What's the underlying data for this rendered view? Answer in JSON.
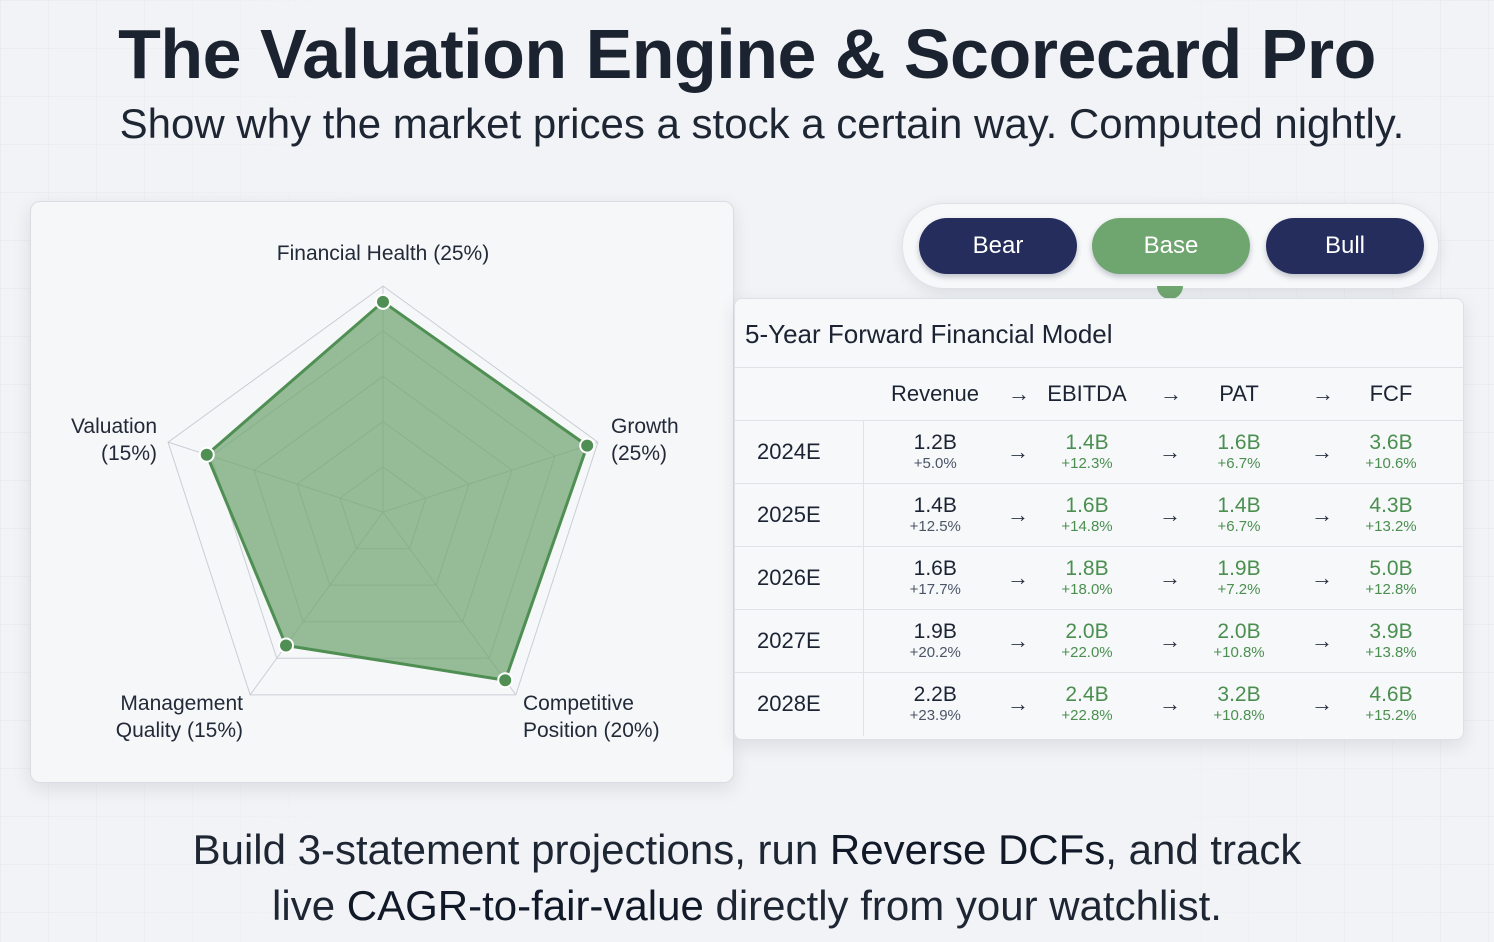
{
  "header": {
    "title": "The Valuation Engine & Scorecard Pro",
    "subtitle": "Show why the market prices a stock a certain way. Computed nightly."
  },
  "scorecard": {
    "axes": [
      {
        "label_lines": [
          "Financial Health (25%)"
        ],
        "score": 0.93
      },
      {
        "label_lines": [
          "Growth",
          "(25%)"
        ],
        "score": 0.95
      },
      {
        "label_lines": [
          "Competitive",
          "Position (20%)"
        ],
        "score": 0.92
      },
      {
        "label_lines": [
          "Management",
          "Quality (15%)"
        ],
        "score": 0.73
      },
      {
        "label_lines": [
          "Valuation",
          "(15%)"
        ],
        "score": 0.82
      }
    ],
    "fill_color": "#6fa56f",
    "point_color": "#4f8f53",
    "grid_color": "#c9ced6"
  },
  "scenarios": {
    "bear": "Bear",
    "base": "Base",
    "bull": "Bull",
    "selected": "Base",
    "selected_color": "#6fa56f",
    "unselected_color": "#252d5c"
  },
  "model": {
    "title": "5-Year Forward Financial Model",
    "arrow": "→",
    "columns": [
      "Revenue",
      "EBITDA",
      "PAT",
      "FCF"
    ],
    "rows": [
      {
        "year": "2024E",
        "revenue": {
          "v": "1.2B",
          "g": "+5.0%"
        },
        "ebitda": {
          "v": "1.4B",
          "g": "+12.3%"
        },
        "pat": {
          "v": "1.6B",
          "g": "+6.7%"
        },
        "fcf": {
          "v": "3.6B",
          "g": "+10.6%"
        }
      },
      {
        "year": "2025E",
        "revenue": {
          "v": "1.4B",
          "g": "+12.5%"
        },
        "ebitda": {
          "v": "1.6B",
          "g": "+14.8%"
        },
        "pat": {
          "v": "1.4B",
          "g": "+6.7%"
        },
        "fcf": {
          "v": "4.3B",
          "g": "+13.2%"
        }
      },
      {
        "year": "2026E",
        "revenue": {
          "v": "1.6B",
          "g": "+17.7%"
        },
        "ebitda": {
          "v": "1.8B",
          "g": "+18.0%"
        },
        "pat": {
          "v": "1.9B",
          "g": "+7.2%"
        },
        "fcf": {
          "v": "5.0B",
          "g": "+12.8%"
        }
      },
      {
        "year": "2027E",
        "revenue": {
          "v": "1.9B",
          "g": "+20.2%"
        },
        "ebitda": {
          "v": "2.0B",
          "g": "+22.0%"
        },
        "pat": {
          "v": "2.0B",
          "g": "+10.8%"
        },
        "fcf": {
          "v": "3.9B",
          "g": "+13.8%"
        }
      },
      {
        "year": "2028E",
        "revenue": {
          "v": "2.2B",
          "g": "+23.9%"
        },
        "ebitda": {
          "v": "2.4B",
          "g": "+22.8%"
        },
        "pat": {
          "v": "3.2B",
          "g": "+10.8%"
        },
        "fcf": {
          "v": "4.6B",
          "g": "+15.2%"
        }
      }
    ]
  },
  "footer": {
    "line1_a": "Build 3-statement projections, run ",
    "line1_b": "Reverse DCFs",
    "line1_c": ", and track",
    "line2_a": "live ",
    "line2_b": "CAGR-to-fair-value",
    "line2_c": " directly from your watchlist."
  }
}
